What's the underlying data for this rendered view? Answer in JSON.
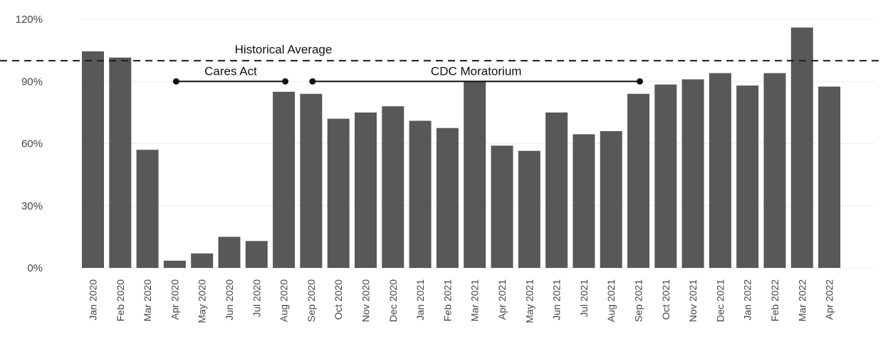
{
  "chart_data": {
    "type": "bar",
    "categories": [
      "Jan 2020",
      "Feb 2020",
      "Mar 2020",
      "Apr 2020",
      "May 2020",
      "Jun 2020",
      "Jul 2020",
      "Aug 2020",
      "Sep 2020",
      "Oct 2020",
      "Nov 2020",
      "Dec 2020",
      "Jan 2021",
      "Feb 2021",
      "Mar 2021",
      "Apr 2021",
      "May 2021",
      "Jun 2021",
      "Jul 2021",
      "Aug 2021",
      "Sep 2021",
      "Oct 2021",
      "Nov 2021",
      "Dec 2021",
      "Jan 2022",
      "Feb 2022",
      "Mar 2022",
      "Apr 2022"
    ],
    "values": [
      104.5,
      101.5,
      57,
      3.5,
      7,
      15,
      13,
      85,
      84,
      72,
      75,
      78,
      71,
      67.5,
      90,
      59,
      56.5,
      75,
      64.5,
      66,
      84,
      88.5,
      91,
      94,
      88,
      94,
      116,
      87.5
    ],
    "yticks": [
      "0%",
      "30%",
      "60%",
      "90%",
      "120%"
    ],
    "ylim": [
      0,
      120
    ],
    "grid": true,
    "bar_color": "#585858",
    "reference_line": {
      "value": 100,
      "label": "Historical Average",
      "style": "dashed"
    },
    "annotations": [
      {
        "label": "Cares Act",
        "from": "Apr 2020",
        "to": "Aug 2020",
        "y": 90
      },
      {
        "label": "CDC Moratorium",
        "from": "Sep 2020",
        "to": "Sep 2021",
        "y": 90
      }
    ]
  }
}
